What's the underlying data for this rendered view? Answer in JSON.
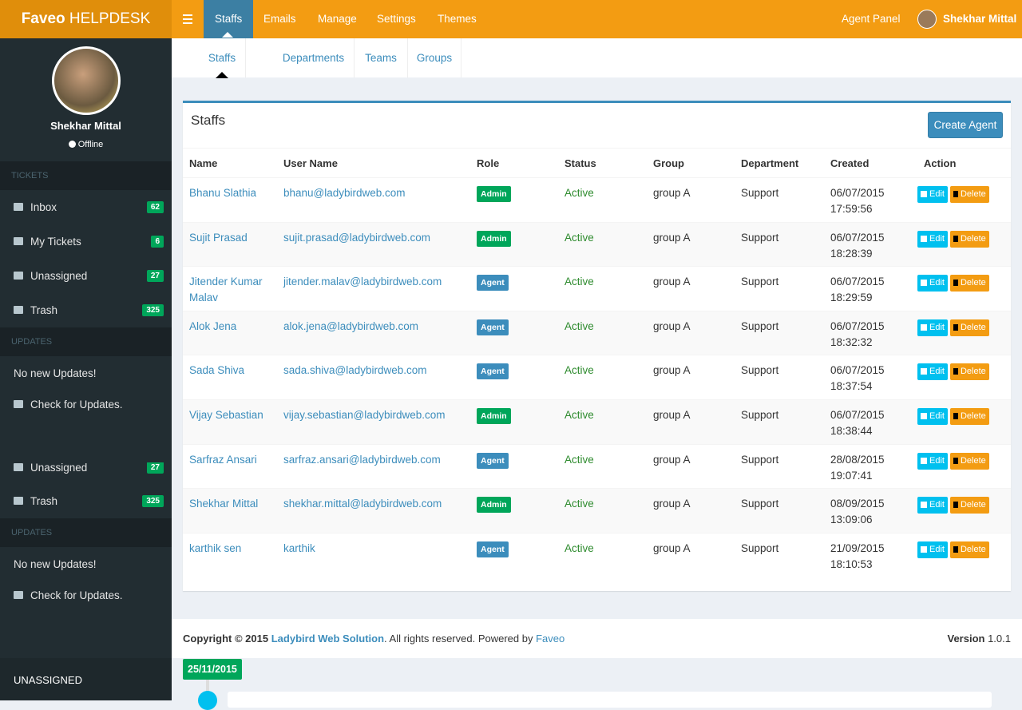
{
  "brand": {
    "bold": "Faveo",
    "rest": "HELPDESK"
  },
  "topnav": [
    "Staffs",
    "Emails",
    "Manage",
    "Settings",
    "Themes"
  ],
  "agent_panel": "Agent Panel",
  "user_name": "Shekhar Mittal",
  "sidebar": {
    "user": "Shekhar Mittal",
    "status": "Offline",
    "tickets_header": "TICKETS",
    "tickets": [
      {
        "label": "Inbox",
        "count": "62"
      },
      {
        "label": "My Tickets",
        "count": "6"
      },
      {
        "label": "Unassigned",
        "count": "27"
      },
      {
        "label": "Trash",
        "count": "325"
      }
    ],
    "updates_header": "UPDATES",
    "no_updates": "No new Updates!",
    "check_updates": "Check for Updates.",
    "repeat": {
      "unassigned": {
        "label": "Unassigned",
        "count": "27"
      },
      "trash": {
        "label": "Trash",
        "count": "325"
      },
      "updates_header": "UPDATES",
      "no_updates": "No new Updates!",
      "check_updates": "Check for Updates."
    },
    "bottom": "UNASSIGNED"
  },
  "subnav": [
    "Staffs",
    "Departments",
    "Teams",
    "Groups"
  ],
  "panel": {
    "title": "Staffs",
    "button": "Create Agent",
    "columns": [
      "Name",
      "User Name",
      "Role",
      "Status",
      "Group",
      "Department",
      "Created",
      "Action"
    ],
    "actions": [
      "Edit",
      "Delete"
    ],
    "rows": [
      [
        "Bhanu Slathia",
        "bhanu@ladybirdweb.com",
        "Admin",
        "Active",
        "group A",
        "Support",
        "06/07/2015 17:59:56"
      ],
      [
        "Sujit Prasad",
        "sujit.prasad@ladybirdweb.com",
        "Admin",
        "Active",
        "group A",
        "Support",
        "06/07/2015 18:28:39"
      ],
      [
        "Jitender Kumar Malav",
        "jitender.malav@ladybirdweb.com",
        "Agent",
        "Active",
        "group A",
        "Support",
        "06/07/2015 18:29:59"
      ],
      [
        "Alok Jena",
        "alok.jena@ladybirdweb.com",
        "Agent",
        "Active",
        "group A",
        "Support",
        "06/07/2015 18:32:32"
      ],
      [
        "Sada Shiva",
        "sada.shiva@ladybirdweb.com",
        "Agent",
        "Active",
        "group A",
        "Support",
        "06/07/2015 18:37:54"
      ],
      [
        "Vijay Sebastian",
        "vijay.sebastian@ladybirdweb.com",
        "Admin",
        "Active",
        "group A",
        "Support",
        "06/07/2015 18:38:44"
      ],
      [
        "Sarfraz Ansari",
        "sarfraz.ansari@ladybirdweb.com",
        "Agent",
        "Active",
        "group A",
        "Support",
        "28/08/2015 19:07:41"
      ],
      [
        "Shekhar Mittal",
        "shekhar.mittal@ladybirdweb.com",
        "Admin",
        "Active",
        "group A",
        "Support",
        "08/09/2015 13:09:06"
      ],
      [
        "karthik sen",
        "karthik",
        "Agent",
        "Active",
        "group A",
        "Support",
        "21/09/2015 18:10:53"
      ]
    ]
  },
  "footer": {
    "copyright": "Copyright © 2015",
    "company": "Ladybird Web Solution",
    "rights": ". All rights reserved. Powered by",
    "powered": "Faveo",
    "version_label": "Version",
    "version": "1.0.1"
  },
  "timeline_date": "25/11/2015"
}
